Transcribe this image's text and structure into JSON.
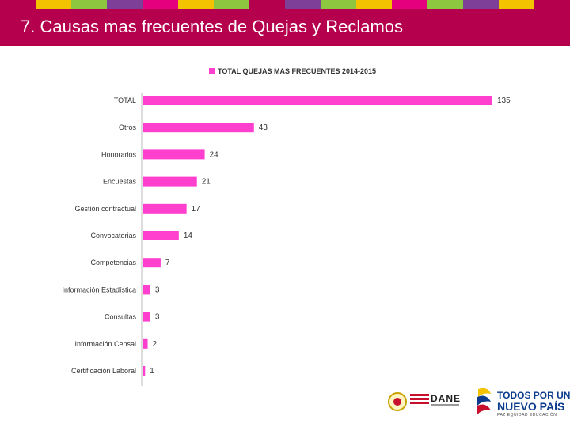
{
  "header": {
    "title": "7. Causas mas frecuentes de Quejas y Reclamos",
    "strip_colors": [
      "#b5004e",
      "#f4c300",
      "#8dc63f",
      "#7d3f98",
      "#e5007e",
      "#f4c300",
      "#8dc63f",
      "#b5004e",
      "#7d3f98",
      "#8dc63f",
      "#f4c300",
      "#e5007e",
      "#8dc63f",
      "#7d3f98",
      "#f4c300",
      "#b5004e"
    ],
    "band_color": "#b5004e"
  },
  "chart_data": {
    "type": "bar",
    "orientation": "horizontal",
    "title": "",
    "legend": {
      "label": "TOTAL QUEJAS MAS FRECUENTES 2014-2015",
      "placement": "top-center"
    },
    "categories": [
      "TOTAL",
      "Otros",
      "Honorarios",
      "Encuestas",
      "Gestión contractual",
      "Convocatorias",
      "Competencias",
      "Información Estadística",
      "Consultas",
      "Información Censal",
      "Certificación Laboral"
    ],
    "values": [
      135,
      43,
      24,
      21,
      17,
      14,
      7,
      3,
      3,
      2,
      1
    ],
    "xlim": [
      0,
      135
    ],
    "xlabel": "",
    "ylabel": "",
    "bar_color": "#ff3fce",
    "grid": false
  },
  "footer": {
    "dane_text": "DANE",
    "pais_line1": "TODOS POR UN",
    "pais_line2": "NUEVO PAÍS",
    "pais_line3": "PAZ  EQUIDAD  EDUCACIÓN"
  }
}
